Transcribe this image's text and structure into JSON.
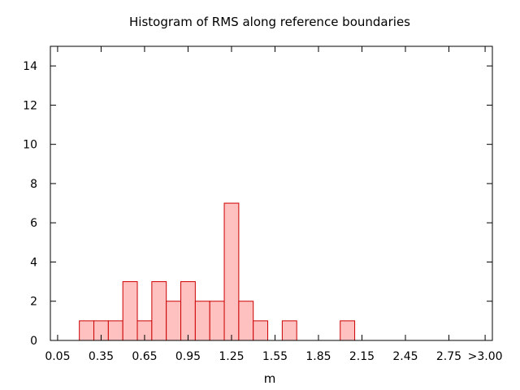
{
  "chart_data": {
    "type": "bar",
    "title": "Histogram of RMS along reference boundaries",
    "xlabel": "m",
    "ylabel": "",
    "xlim": [
      0.0,
      3.05
    ],
    "ylim": [
      0,
      15
    ],
    "bin_width": 0.1,
    "x_tick_values": [
      0.05,
      0.35,
      0.65,
      0.95,
      1.25,
      1.55,
      1.85,
      2.15,
      2.45,
      2.75,
      3.0
    ],
    "x_tick_labels": [
      "0.05",
      "0.35",
      "0.65",
      "0.95",
      "1.25",
      "1.55",
      "1.85",
      "2.15",
      "2.45",
      "2.75",
      ">3.00"
    ],
    "y_ticks": [
      0,
      2,
      4,
      6,
      8,
      10,
      12,
      14
    ],
    "categories": [
      "0.25",
      "0.35",
      "0.45",
      "0.55",
      "0.65",
      "0.75",
      "0.85",
      "0.95",
      "1.05",
      "1.15",
      "1.25",
      "1.35",
      "1.45",
      "1.65",
      "2.05"
    ],
    "x": [
      0.25,
      0.35,
      0.45,
      0.55,
      0.65,
      0.75,
      0.85,
      0.95,
      1.05,
      1.15,
      1.25,
      1.35,
      1.45,
      1.65,
      2.05
    ],
    "values": [
      1,
      1,
      1,
      3,
      1,
      3,
      2,
      3,
      2,
      2,
      7,
      2,
      1,
      1,
      1
    ],
    "bar_fill": "#ffc0c0",
    "bar_stroke": "#cc0000",
    "grid": false
  }
}
